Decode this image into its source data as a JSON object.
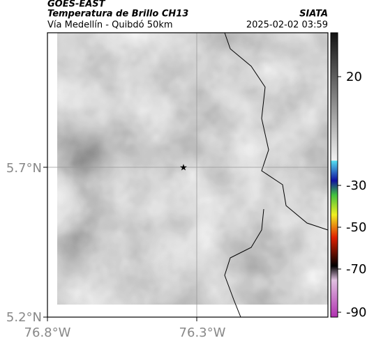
{
  "header": {
    "satellite": "GOES-EAST",
    "product": "Temperatura de Brillo CH13",
    "region": "Vía Medellín - Quibdó 50km",
    "source": "SIATA",
    "datetime": "2025-02-02 03:59"
  },
  "axes": {
    "x_labels": [
      "76.8°W",
      "76.3°W"
    ],
    "y_labels": [
      "5.7°N",
      "5.2°N"
    ]
  },
  "colorbar": {
    "labels": [
      "20",
      "-30",
      "-50",
      "-70",
      "-90"
    ]
  }
}
